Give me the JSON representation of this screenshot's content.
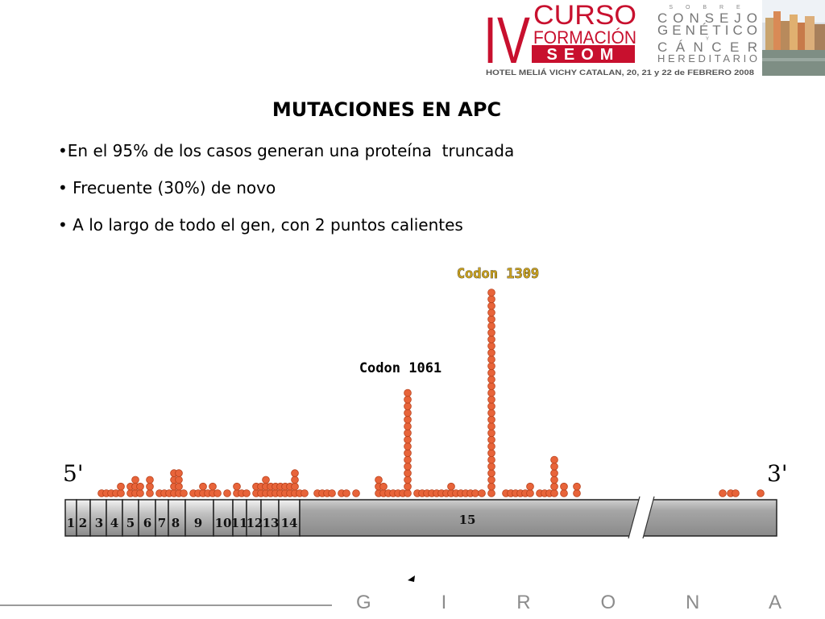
{
  "header": {
    "roman_numeral": "IV",
    "curso": "CURSO",
    "formacion": "FORMACIÓN",
    "seom": "SEOM",
    "sobre": "S O B R E",
    "consejo": "CONSEJO",
    "genetico": "GENÉTICO",
    "y": "Y",
    "cancer": "CÁNCER",
    "hereditario": "HEREDITARIO",
    "venue": "HOTEL MELIÁ VICHY CATALAN, 20, 21 y 22 de FEBRERO 2008",
    "colors": {
      "red": "#c8102e",
      "gray": "#777777"
    }
  },
  "title": "MUTACIONES EN APC",
  "bullets": [
    "•En el 95% de los casos generan una proteína  truncada",
    "• Frecuente (30%) de novo",
    "• A lo largo de todo el gen, con 2 puntos calientes"
  ],
  "diagram": {
    "label_5prime": "5'",
    "label_3prime": "3'",
    "hotspot_1061": "Codon 1061",
    "hotspot_1309": "Codon 1309",
    "exons": [
      "1",
      "2",
      "3",
      "4",
      "5",
      "6",
      "7",
      "8",
      "9",
      "10",
      "11",
      "12",
      "13",
      "14",
      "15"
    ],
    "colors": {
      "mutation": "#e8643a",
      "mutation_stroke": "#b8401a",
      "gene": "#9a9a9a"
    }
  },
  "footer": {
    "city": "G I R O N A",
    "colors": {
      "text": "#8c8c8c"
    }
  }
}
